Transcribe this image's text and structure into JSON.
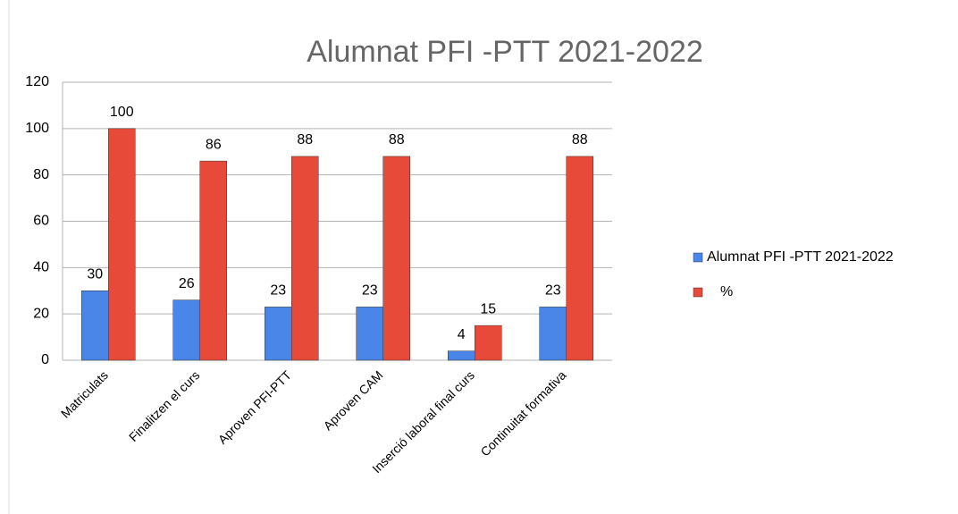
{
  "chart_data": {
    "type": "bar",
    "title": "Alumnat PFI -PTT 2021-2022",
    "categories": [
      "Matriculats",
      "Finalitzen el curs",
      "Aproven PFI-PTT",
      "Aproven CAM",
      "Inserció laboral final curs",
      "Continuitat formativa"
    ],
    "series": [
      {
        "name": "Alumnat PFI -PTT 2021-2022",
        "color": "#4a86e8",
        "values": [
          30,
          26,
          23,
          23,
          4,
          23
        ]
      },
      {
        "name": "%",
        "color": "#e84a3a",
        "values": [
          100,
          86,
          88,
          88,
          15,
          88
        ]
      }
    ],
    "ylim": [
      0,
      120
    ],
    "yticks": [
      0,
      20,
      40,
      60,
      80,
      100,
      120
    ],
    "grid": true,
    "legend": "right"
  }
}
